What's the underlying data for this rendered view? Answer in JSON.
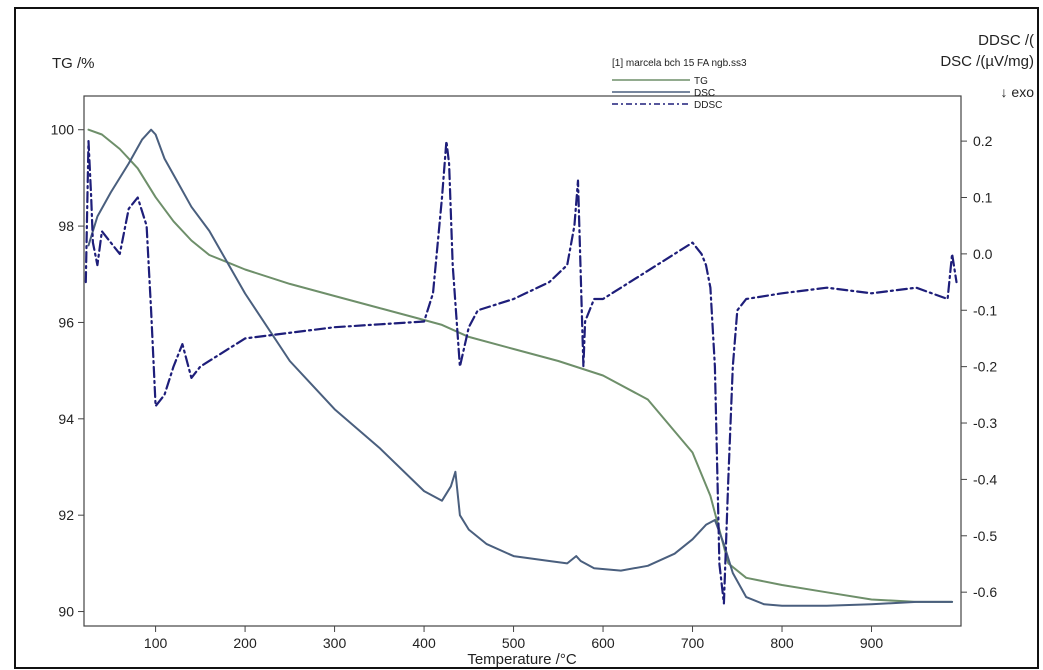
{
  "chart_data": {
    "type": "line",
    "title": "",
    "xlabel": "Temperature /°C",
    "ylabel_left": "TG /%",
    "ylabel_right_top": "DDSC /(",
    "ylabel_right": "DSC /(µV/mg)",
    "exo_label": "↓ exo",
    "xlim": [
      20,
      1000
    ],
    "ylim_left": [
      89.7,
      100.7
    ],
    "ylim_right": [
      -0.66,
      0.28
    ],
    "x_ticks": [
      100,
      200,
      300,
      400,
      500,
      600,
      700,
      800,
      900
    ],
    "x_tick_labels": [
      "100",
      "200",
      "300",
      "400",
      "500",
      "600",
      "700",
      "800",
      "900"
    ],
    "y_left_ticks": [
      90,
      92,
      94,
      96,
      98,
      100
    ],
    "y_left_tick_labels": [
      "90",
      "92",
      "94",
      "96",
      "98",
      "100"
    ],
    "y_right_ticks": [
      0.2,
      0.1,
      0.0,
      -0.1,
      -0.2,
      -0.3,
      -0.4,
      -0.5,
      -0.6
    ],
    "y_right_tick_labels": [
      "0.2",
      "0.1",
      "0.0",
      "-0.1",
      "-0.2",
      "-0.3",
      "-0.4",
      "-0.5",
      "-0.6"
    ],
    "legend_placement": "top-right",
    "legend_header": "[1] marcela bch 15 FA ngb.ss3",
    "series": [
      {
        "name": "TG",
        "axis": "left",
        "color": "#6e8f6a",
        "x": [
          25,
          40,
          60,
          80,
          100,
          120,
          140,
          160,
          180,
          200,
          250,
          300,
          350,
          400,
          420,
          450,
          500,
          550,
          600,
          650,
          700,
          720,
          740,
          760,
          800,
          850,
          900,
          950,
          990
        ],
        "y": [
          100.0,
          99.9,
          99.6,
          99.2,
          98.6,
          98.1,
          97.7,
          97.4,
          97.25,
          97.1,
          96.8,
          96.55,
          96.3,
          96.05,
          95.95,
          95.7,
          95.45,
          95.2,
          94.9,
          94.4,
          93.3,
          92.4,
          91.0,
          90.7,
          90.55,
          90.4,
          90.25,
          90.2,
          90.2
        ]
      },
      {
        "name": "DSC",
        "axis": "left",
        "color": "#4a5f7e",
        "x": [
          25,
          35,
          50,
          70,
          85,
          95,
          100,
          110,
          125,
          140,
          160,
          200,
          250,
          300,
          350,
          400,
          420,
          430,
          435,
          440,
          450,
          470,
          500,
          540,
          560,
          570,
          575,
          590,
          620,
          650,
          680,
          700,
          715,
          725,
          735,
          745,
          760,
          780,
          800,
          850,
          900,
          950,
          990
        ],
        "y": [
          97.6,
          98.2,
          98.7,
          99.3,
          99.8,
          100.0,
          99.9,
          99.4,
          98.9,
          98.4,
          97.9,
          96.6,
          95.2,
          94.2,
          93.4,
          92.5,
          92.3,
          92.6,
          92.9,
          92.0,
          91.7,
          91.4,
          91.15,
          91.05,
          91.0,
          91.15,
          91.05,
          90.9,
          90.85,
          90.95,
          91.2,
          91.5,
          91.8,
          91.9,
          91.4,
          90.8,
          90.3,
          90.15,
          90.12,
          90.12,
          90.15,
          90.2,
          90.2
        ]
      },
      {
        "name": "DDSC",
        "axis": "right",
        "color": "#1e1e7a",
        "x": [
          22,
          25,
          28,
          30,
          35,
          40,
          50,
          60,
          70,
          80,
          90,
          95,
          100,
          110,
          120,
          130,
          140,
          150,
          200,
          300,
          400,
          410,
          420,
          425,
          428,
          432,
          440,
          450,
          460,
          500,
          540,
          560,
          568,
          572,
          578,
          580,
          590,
          600,
          650,
          700,
          710,
          715,
          720,
          725,
          730,
          735,
          740,
          745,
          750,
          760,
          800,
          850,
          900,
          950,
          985,
          990,
          995
        ],
        "y": [
          -0.05,
          0.2,
          0.1,
          0.02,
          -0.02,
          0.04,
          0.02,
          0.0,
          0.08,
          0.1,
          0.05,
          -0.1,
          -0.27,
          -0.25,
          -0.2,
          -0.16,
          -0.22,
          -0.2,
          -0.15,
          -0.13,
          -0.12,
          -0.07,
          0.1,
          0.2,
          0.16,
          -0.02,
          -0.2,
          -0.13,
          -0.1,
          -0.08,
          -0.05,
          -0.02,
          0.05,
          0.13,
          -0.2,
          -0.12,
          -0.08,
          -0.08,
          -0.03,
          0.02,
          0.0,
          -0.02,
          -0.06,
          -0.2,
          -0.55,
          -0.62,
          -0.4,
          -0.2,
          -0.1,
          -0.08,
          -0.07,
          -0.06,
          -0.07,
          -0.06,
          -0.08,
          0.0,
          -0.05
        ]
      }
    ]
  }
}
